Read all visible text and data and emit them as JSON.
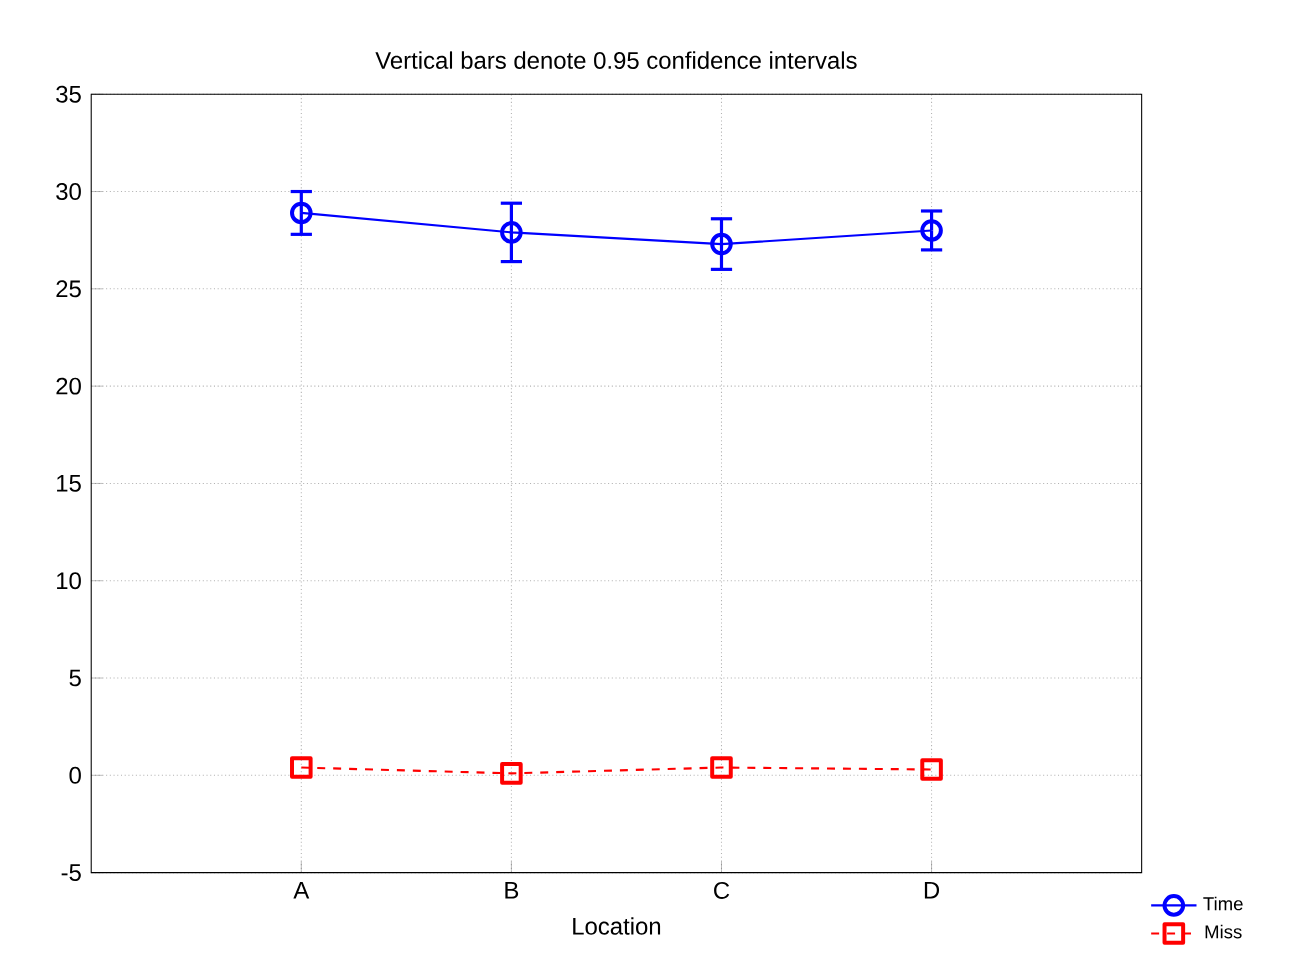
{
  "chart_data": {
    "type": "line",
    "title": "Vertical bars denote 0.95 confidence intervals",
    "xlabel": "Location",
    "categories": [
      "A",
      "B",
      "C",
      "D"
    ],
    "series": [
      {
        "name": "Time",
        "color": "#0000ff",
        "values": [
          28.9,
          27.9,
          27.3,
          28.0
        ],
        "errors": [
          1.1,
          1.5,
          1.3,
          1.0
        ],
        "marker": "circle",
        "line_style": "solid"
      },
      {
        "name": "Miss",
        "color": "#ff0000",
        "values": [
          0.4,
          0.1,
          0.4,
          0.3
        ],
        "marker": "square",
        "line_style": "dashed"
      }
    ],
    "ylim": [
      -5,
      35
    ],
    "yticks": [
      -5,
      0,
      5,
      10,
      15,
      20,
      25,
      30,
      35
    ],
    "grid": true,
    "legend": "bottom right"
  }
}
